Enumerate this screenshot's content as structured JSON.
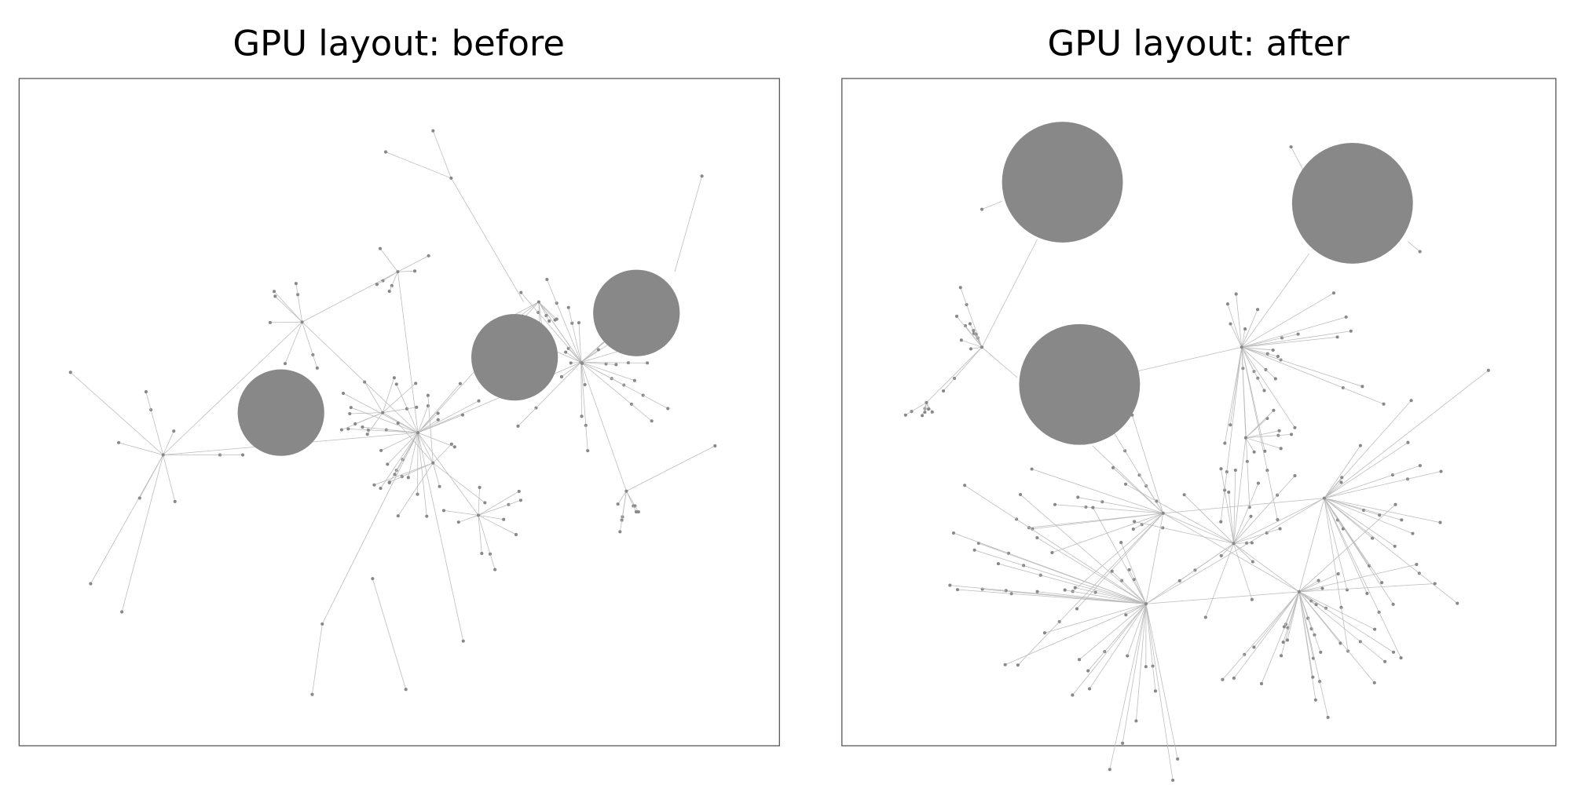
{
  "panels": [
    {
      "title": "GPU layout: before"
    },
    {
      "title": "GPU layout: after"
    }
  ],
  "colors": {
    "node": "#888888",
    "edge": "#bbbbbb",
    "frame": "#555555",
    "background": "#ffffff"
  }
}
